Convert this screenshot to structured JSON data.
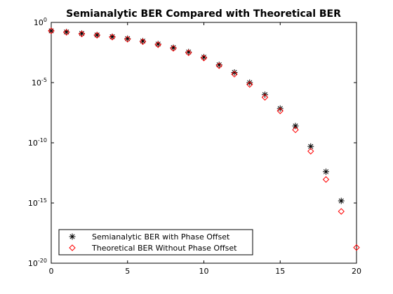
{
  "chart_data": {
    "type": "scatter",
    "title": "Semianalytic BER Compared with Theoretical BER",
    "xlabel": "",
    "ylabel": "",
    "xlim": [
      0,
      20
    ],
    "ylim": [
      1e-20,
      1
    ],
    "yscale": "log",
    "x_ticks": [
      "0",
      "5",
      "10",
      "15",
      "20"
    ],
    "y_ticks": [
      {
        "base": "10",
        "exp": "0"
      },
      {
        "base": "10",
        "exp": "-5"
      },
      {
        "base": "10",
        "exp": "-10"
      },
      {
        "base": "10",
        "exp": "-15"
      },
      {
        "base": "10",
        "exp": "-20"
      }
    ],
    "legend_position": "bottom-left",
    "series": [
      {
        "name": "Semianalytic BER with Phase Offset",
        "marker": "star",
        "color": "#000000",
        "x": [
          0,
          1,
          2,
          3,
          4,
          5,
          6,
          7,
          8,
          9,
          10,
          11,
          12,
          13,
          14,
          15,
          16,
          17,
          18,
          19
        ],
        "y": [
          0.2,
          0.16,
          0.12,
          0.09,
          0.065,
          0.045,
          0.028,
          0.016,
          0.008,
          0.0035,
          0.0013,
          0.0003,
          7e-05,
          1e-05,
          1e-06,
          7e-08,
          2.5e-09,
          5e-11,
          4e-13,
          1.5e-15
        ]
      },
      {
        "name": "Theoretical BER Without Phase Offset",
        "marker": "diamond",
        "color": "#ff0000",
        "x": [
          0,
          1,
          2,
          3,
          4,
          5,
          6,
          7,
          8,
          9,
          10,
          11,
          12,
          13,
          14,
          15,
          16,
          17,
          18,
          19,
          20
        ],
        "y": [
          0.2,
          0.15,
          0.11,
          0.085,
          0.06,
          0.04,
          0.025,
          0.014,
          0.007,
          0.003,
          0.0011,
          0.00025,
          5e-05,
          7e-06,
          6e-07,
          4.5e-08,
          1.2e-09,
          2e-11,
          9e-14,
          2e-16,
          2e-19
        ]
      }
    ]
  }
}
